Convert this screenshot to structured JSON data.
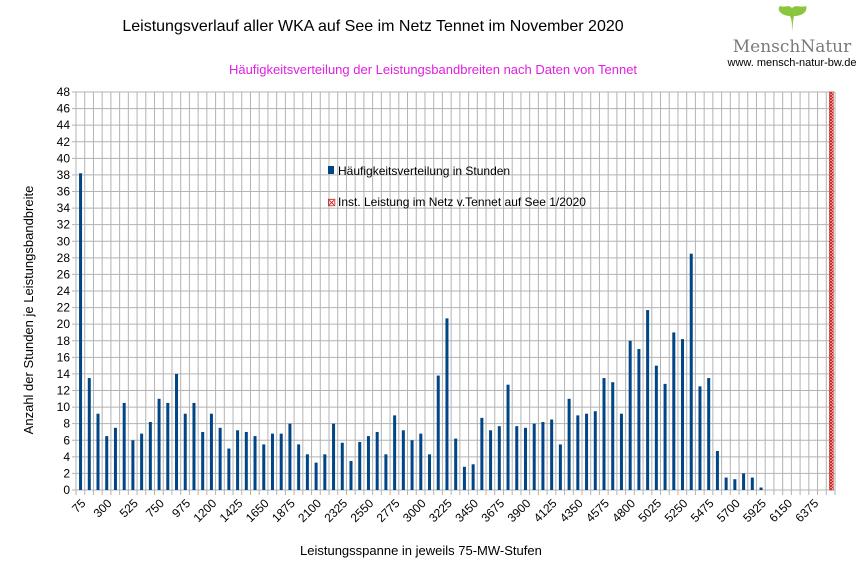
{
  "logo": {
    "name": "MenschNatur",
    "url": "www. mensch-natur-bw.de"
  },
  "chart_data": {
    "type": "bar",
    "title": "Leistungsverlauf aller WKA auf See im Netz Tennet im November 2020",
    "subtitle": "Häufigkeitsverteilung der Leistungsbandbreiten nach Daten von Tennet",
    "xlabel": "Leistungsspanne in jeweils 75-MW-Stufen",
    "ylabel": "Anzahl der Stunden je Leistungsbandbreite",
    "ylim": [
      0,
      48
    ],
    "ytick_step": 2,
    "x_start": 75,
    "x_step": 75,
    "x_label_every": 3,
    "grid": true,
    "legend_position": "center-left-top",
    "series": [
      {
        "name": "Häufigkeitsverteilung in Stunden",
        "color": "#004586",
        "values": [
          38.2,
          13.5,
          9.2,
          6.5,
          7.5,
          10.5,
          6,
          6.8,
          8.2,
          11,
          10.5,
          14,
          9.2,
          10.5,
          7,
          9.2,
          7.5,
          5,
          7.2,
          7,
          6.5,
          5.5,
          6.8,
          6.8,
          8,
          5.5,
          4.3,
          3.3,
          4.3,
          8,
          5.7,
          3.5,
          5.8,
          6.5,
          7,
          4.3,
          9,
          7.2,
          6,
          6.8,
          4.3,
          13.8,
          20.7,
          6.2,
          2.8,
          3.1,
          8.7,
          7.2,
          7.7,
          12.7,
          7.7,
          7.5,
          8,
          8.2,
          8.5,
          5.5,
          11,
          9,
          9.2,
          9.5,
          13.5,
          13,
          9.2,
          18,
          17,
          21.7,
          15,
          12.8,
          19,
          18.2,
          28.5,
          12.5,
          13.5,
          4.7,
          1.5,
          1.3,
          2,
          1.5,
          0.3,
          0,
          0,
          0,
          0,
          0,
          0,
          0
        ]
      },
      {
        "name": "Inst. Leistung im Netz v.Tennet auf See 1/2020",
        "color": "#c9211e",
        "values_note": "single full-height marker at last category",
        "value": 48
      }
    ]
  }
}
